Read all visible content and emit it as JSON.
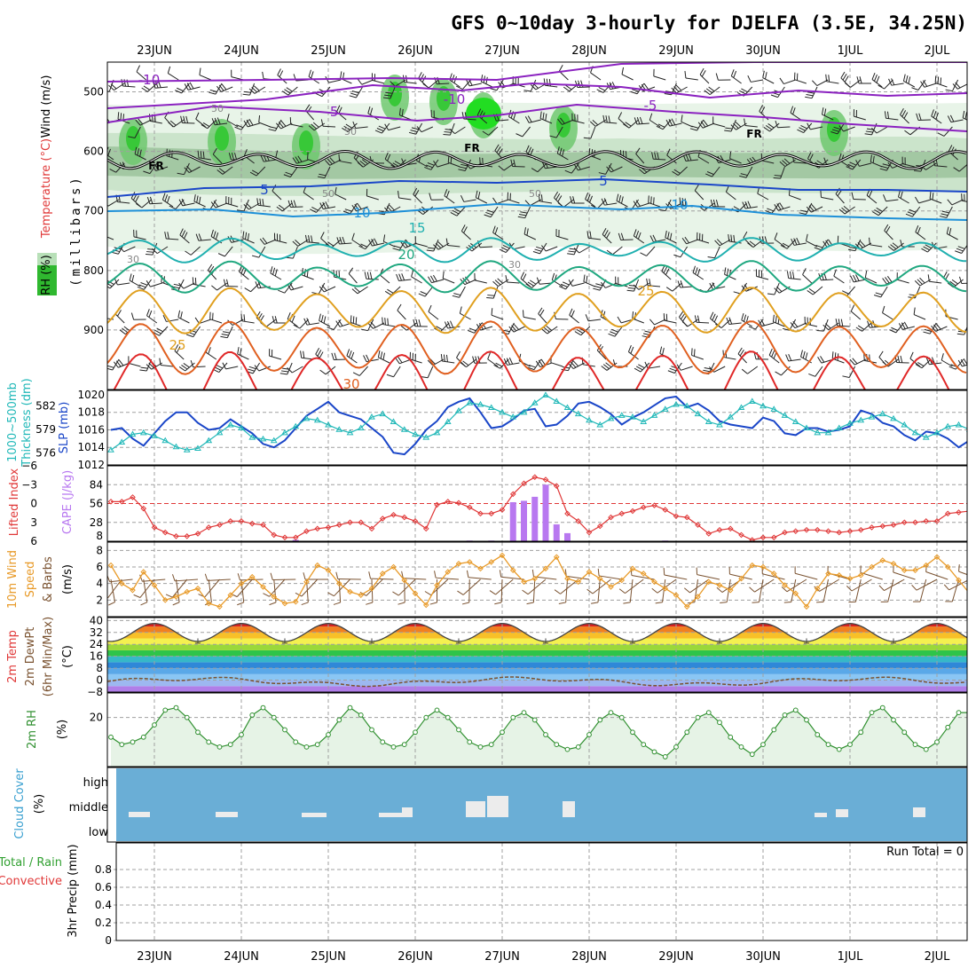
{
  "title": "GFS 0~10day 3-hourly for DJELFA (3.5E, 34.25N)",
  "dates": [
    "23JUN",
    "24JUN",
    "25JUN",
    "26JUN",
    "27JUN",
    "28JUN",
    "29JUN",
    "30JUN",
    "1JUL",
    "2JUL"
  ],
  "colors": {
    "grid": "#a0a0a0",
    "temp_neg": "#8b22c0",
    "temp_pos5": "#1a46c8",
    "temp_10": "#1e90d8",
    "temp_15": "#20b0b0",
    "temp_20": "#20a880",
    "temp_25": "#e0a020",
    "temp_30": "#e06020",
    "temp_35": "#e02828",
    "rh_fill": "#e6f3e6",
    "rh_green": "#38c838",
    "slp": "#1a46c8",
    "thickness": "#20b8b8",
    "lifted": "#e03838",
    "cape": "#b878f0",
    "wind": "#e89a28",
    "dewpt": "#7a5230",
    "rh2m": "#309030",
    "cloud_bg": "#6aaed6",
    "cloud_bar": "#ececec"
  },
  "labels": {
    "upper_wind": "Wind (m/s)",
    "upper_temp": "Temperature (°C)",
    "upper_rh": "RH (%)",
    "upper_pressure": "(millibars)",
    "thickness": "1000~500mb",
    "thickness2": "Thickness (dm)",
    "slp": "SLP (mb)",
    "lifted": "Lifted Index",
    "cape": "CAPE (J/kg)",
    "wind10_1": "10m Wind",
    "wind10_2": "Speed",
    "wind10_3": "& Barbs",
    "wind10_unit": "(m/s)",
    "temp2_1": "2m Temp",
    "temp2_2": "2m DewPt",
    "temp2_3": "(6hr Min/Max)",
    "temp2_unit": "(°C)",
    "rh2": "2m RH",
    "rh2_unit": "(%)",
    "cloud": "Cloud Cover",
    "cloud_unit": "(%)",
    "cloud_high": "high",
    "cloud_middle": "middle",
    "cloud_low": "low",
    "precip1": "Total / Rain",
    "precip2": "Convective",
    "precip3": "3hr Precip (mm)",
    "run_total": "Run Total = 0",
    "fr": "FR"
  },
  "chart_data": [
    {
      "type": "line",
      "panel": "upper-air",
      "y_axis": "pressure (mb)",
      "y_ticks": [
        500,
        600,
        700,
        800,
        900
      ],
      "ylim": [
        1000,
        450
      ],
      "isotherm_labels": [
        "-10",
        "-5",
        "FR",
        "5",
        "10",
        "15",
        "20",
        "25",
        "30"
      ],
      "rh_labels": [
        "50",
        "30"
      ],
      "series": [
        {
          "name": "-10",
          "level": -10
        },
        {
          "name": "-5",
          "level": -5
        },
        {
          "name": "FR",
          "level": 0
        },
        {
          "name": "5",
          "level": 5
        },
        {
          "name": "10",
          "level": 10
        },
        {
          "name": "15",
          "level": 15
        },
        {
          "name": "20",
          "level": 20
        },
        {
          "name": "25",
          "level": 25
        },
        {
          "name": "30",
          "level": 30
        }
      ]
    },
    {
      "type": "line",
      "panel": "thickness-slp",
      "left_ticks": [
        576,
        579,
        582
      ],
      "right_ticks": [
        1012,
        1014,
        1016,
        1018,
        1020
      ],
      "series": [
        {
          "name": "SLP (mb)",
          "values": [
            1016.0,
            1016.2,
            1015.0,
            1014.2,
            1015.6,
            1017.0,
            1018.0,
            1018.0,
            1016.8,
            1016.0,
            1016.2,
            1017.2,
            1016.4,
            1015.6,
            1014.4,
            1014.0,
            1014.8,
            1016.2,
            1017.6,
            1018.4,
            1019.2,
            1018.0,
            1017.6,
            1017.2,
            1016.2,
            1015.2,
            1013.4,
            1013.2,
            1014.4,
            1016.0,
            1017.0,
            1018.6,
            1019.2,
            1019.6,
            1018.0,
            1016.2,
            1016.4,
            1017.2,
            1018.2,
            1018.4,
            1016.4,
            1016.6,
            1017.6,
            1019.0,
            1019.2,
            1018.6,
            1017.8,
            1016.6,
            1017.4,
            1018.0,
            1018.8,
            1019.6,
            1019.8,
            1018.6,
            1019.0,
            1018.2,
            1017.0,
            1016.6,
            1016.4,
            1016.2,
            1017.4,
            1017.0,
            1015.6,
            1015.4,
            1016.2,
            1016.2,
            1015.8,
            1016.0,
            1016.4,
            1018.2,
            1017.8,
            1016.8,
            1016.4,
            1015.4,
            1014.8,
            1015.8,
            1015.6,
            1015.0,
            1014.0,
            1014.8,
            1015.8,
            1015.6,
            1016.0,
            1015.6,
            1014.8,
            1016.0,
            1014.6,
            1013.8,
            1013.4,
            1014.0,
            1015.0
          ]
        },
        {
          "name": "Thickness (dm)",
          "values": [
            576.4,
            577.4,
            578.4,
            578.6,
            578.2,
            577.6,
            576.8,
            576.4,
            576.6,
            577.6,
            578.6,
            579.6,
            579.2,
            578.0,
            577.8,
            577.6,
            578.6,
            579.4,
            580.4,
            580.2,
            579.6,
            579.0,
            578.6,
            579.2,
            580.6,
            581.0,
            580.0,
            579.0,
            578.4,
            578.0,
            578.6,
            580.0,
            581.4,
            582.4,
            582.2,
            581.8,
            581.2,
            580.6,
            581.2,
            582.4,
            583.4,
            582.6,
            581.8,
            581.0,
            580.2,
            579.6,
            580.4,
            580.8,
            580.6,
            580.0,
            580.8,
            581.6,
            582.2,
            582.0,
            581.0,
            580.0,
            579.6,
            580.6,
            581.8,
            582.6,
            582.0,
            581.6,
            580.8,
            580.0,
            579.2,
            578.6,
            578.6,
            579.2,
            579.8,
            580.2,
            580.6,
            581.0,
            580.4,
            579.6,
            578.6,
            578.0,
            578.6,
            579.4,
            579.6,
            579.0,
            578.0,
            577.2,
            577.0,
            577.0,
            578.4,
            578.0,
            577.4,
            576.8,
            576.6,
            576.2,
            576.0
          ]
        }
      ]
    },
    {
      "type": "bar",
      "panel": "lifted-cape",
      "left_ticks": [
        -6,
        -3,
        0,
        3,
        6
      ],
      "right_ticks": [
        8,
        28,
        56,
        84
      ],
      "series": [
        {
          "name": "Lifted Index",
          "values": [
            -0.3,
            -0.3,
            -1.0,
            0.8,
            3.8,
            4.6,
            5.2,
            5.2,
            4.8,
            3.8,
            3.4,
            2.8,
            2.8,
            3.2,
            3.4,
            5.0,
            5.4,
            5.4,
            4.4,
            4.0,
            3.8,
            3.4,
            3.0,
            3.0,
            4.0,
            2.4,
            1.8,
            2.2,
            2.8,
            4.0,
            0.2,
            -0.3,
            -0.1,
            0.6,
            1.6,
            1.6,
            1.0,
            -1.5,
            -3.2,
            -4.2,
            -3.8,
            -2.8,
            1.6,
            2.8,
            4.6,
            3.6,
            2.2,
            1.6,
            1.2,
            0.6,
            0.3,
            1.0,
            2.0,
            2.2,
            3.4,
            4.8,
            4.2,
            4.0,
            5.0,
            5.8,
            5.4,
            5.4,
            4.6,
            4.4,
            4.2,
            4.2,
            4.4,
            4.6,
            4.4,
            4.2,
            3.8,
            3.6,
            3.4,
            3.0,
            3.0,
            2.8,
            2.8,
            1.6,
            1.4,
            1.2,
            1.6,
            2.8,
            2.2,
            1.2,
            0.6,
            0.3,
            0.9,
            0.4,
            0.6,
            0.8,
            2.4
          ]
        },
        {
          "name": "CAPE (J/kg)",
          "values": [
            0,
            0,
            0,
            0,
            0,
            0,
            0,
            0,
            0,
            0,
            0,
            0,
            0,
            0,
            0,
            0,
            0,
            2,
            0,
            0,
            0,
            0,
            0,
            0,
            0,
            0,
            0,
            0,
            0,
            0,
            0,
            0,
            0,
            1,
            0,
            1,
            0,
            58,
            60,
            66,
            84,
            25,
            12,
            0,
            0,
            0,
            0,
            0,
            0,
            0,
            0,
            1,
            0,
            0,
            0,
            0,
            0,
            0,
            0,
            0,
            0,
            0,
            0,
            0,
            0,
            0,
            0,
            0,
            0,
            0,
            0,
            0,
            0,
            0,
            0,
            0,
            0,
            0,
            0,
            0,
            0,
            0,
            0,
            0,
            6,
            0,
            0,
            0,
            0,
            0,
            6,
            0
          ]
        }
      ]
    },
    {
      "type": "line",
      "panel": "wind10m",
      "y_ticks": [
        2,
        4,
        6,
        8
      ],
      "ylim": [
        0,
        9
      ],
      "series": [
        {
          "name": "10m Wind Speed (m/s)",
          "values": [
            6.2,
            4.0,
            3.2,
            5.4,
            3.8,
            2.0,
            2.4,
            3.0,
            3.4,
            1.6,
            1.2,
            2.6,
            4.0,
            4.8,
            3.6,
            2.4,
            1.6,
            1.8,
            4.2,
            6.2,
            5.6,
            4.0,
            3.0,
            2.6,
            3.4,
            5.2,
            6.0,
            4.4,
            2.8,
            1.4,
            3.8,
            5.4,
            6.4,
            6.6,
            5.8,
            6.6,
            7.4,
            5.6,
            4.2,
            4.6,
            5.8,
            7.2,
            4.6,
            4.2,
            5.4,
            4.6,
            3.6,
            4.4,
            5.8,
            5.2,
            4.2,
            3.4,
            2.6,
            1.2,
            2.4,
            4.2,
            3.8,
            3.2,
            4.6,
            6.2,
            6.0,
            5.2,
            3.8,
            2.8,
            1.2,
            3.4,
            5.2,
            5.0,
            4.6,
            5.0,
            6.0,
            6.8,
            6.4,
            5.6,
            5.6,
            6.2,
            7.2,
            6.0,
            4.4,
            2.8,
            2.4,
            3.6,
            4.6,
            6.0,
            5.6,
            4.8,
            2.4,
            0.8,
            0.8,
            1.6,
            2.0
          ]
        }
      ]
    },
    {
      "type": "area",
      "panel": "temp2m",
      "y_ticks": [
        -8,
        0,
        8,
        16,
        24,
        32,
        40
      ],
      "series": [
        {
          "name": "2m Temp",
          "cycle_min": 26,
          "cycle_max": 38
        },
        {
          "name": "2m DewPt",
          "range": [
            -4,
            2
          ]
        }
      ]
    },
    {
      "type": "line",
      "panel": "rh2m",
      "y_ticks": [
        20
      ],
      "series": [
        {
          "name": "2m RH (%)",
          "values": [
            12,
            9,
            10,
            12,
            17,
            23,
            24,
            20,
            14,
            10,
            8,
            9,
            13,
            21,
            24,
            20,
            15,
            10,
            8,
            9,
            13,
            19,
            24,
            21,
            15,
            10,
            8,
            9,
            14,
            20,
            23,
            20,
            15,
            10,
            8,
            9,
            14,
            20,
            22,
            19,
            13,
            9,
            7,
            8,
            13,
            19,
            22,
            20,
            14,
            9,
            6,
            4,
            8,
            14,
            20,
            22,
            18,
            12,
            8,
            5,
            9,
            15,
            21,
            23,
            19,
            13,
            9,
            7,
            9,
            14,
            22,
            24,
            19,
            14,
            9,
            7,
            10,
            16,
            22,
            22,
            18,
            12,
            8,
            7,
            10,
            15,
            21,
            25,
            22,
            16,
            12
          ]
        }
      ]
    },
    {
      "type": "bar",
      "panel": "cloud-cover",
      "levels": [
        "high",
        "middle",
        "low"
      ],
      "series": [
        {
          "name": "Cloud Cover",
          "values": [
            0,
            0,
            0,
            0,
            0,
            0,
            0,
            0,
            0,
            0,
            0,
            0,
            0,
            0,
            0,
            0,
            0,
            0,
            0,
            0,
            0,
            0,
            0,
            0,
            0,
            0,
            0,
            0,
            0,
            0,
            0,
            0,
            0,
            0,
            0,
            0,
            0,
            0,
            0,
            0,
            0,
            0,
            0,
            0,
            0,
            0,
            0,
            0,
            0,
            0,
            0,
            0,
            0,
            0,
            0,
            0,
            0,
            0,
            0,
            0,
            0,
            0,
            0,
            0,
            0,
            0,
            0,
            0,
            0,
            0,
            0,
            0,
            0,
            0,
            0,
            0,
            0,
            0,
            0,
            0,
            0,
            0,
            0,
            0,
            0,
            0,
            0,
            0,
            0,
            0,
            0
          ]
        }
      ]
    },
    {
      "type": "line",
      "panel": "precip",
      "y_ticks": [
        0,
        0.2,
        0.4,
        0.6,
        0.8
      ],
      "series": [
        {
          "name": "Total / Rain",
          "values": [
            0,
            0,
            0,
            0,
            0,
            0,
            0,
            0,
            0,
            0,
            0,
            0,
            0,
            0,
            0,
            0,
            0,
            0,
            0,
            0,
            0,
            0,
            0,
            0,
            0,
            0,
            0,
            0,
            0,
            0,
            0,
            0,
            0,
            0,
            0,
            0,
            0,
            0,
            0,
            0,
            0,
            0,
            0,
            0,
            0,
            0,
            0,
            0,
            0,
            0,
            0,
            0,
            0,
            0,
            0,
            0,
            0,
            0,
            0,
            0,
            0,
            0,
            0,
            0,
            0,
            0,
            0,
            0,
            0,
            0,
            0,
            0,
            0,
            0,
            0,
            0,
            0,
            0,
            0,
            0,
            0,
            0,
            0,
            0,
            0,
            0,
            0,
            0,
            0,
            0,
            0
          ]
        }
      ]
    }
  ]
}
